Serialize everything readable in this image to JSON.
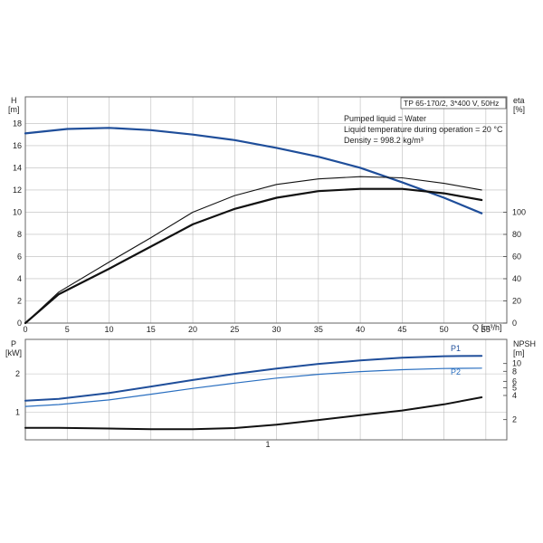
{
  "colors": {
    "head_curve": "#1f4e9a",
    "power_p1": "#1f4e9a",
    "power_p2": "#2a6fc0",
    "eff_curve": "#111111",
    "npsh_curve": "#111111",
    "grid": "#bbbbbb",
    "frame": "#666666"
  },
  "info_box": {
    "title": "TP 65-170/2, 3*400 V, 50Hz",
    "lines": [
      "Pumped liquid = Water",
      "Liquid temperature during operation = 20 °C",
      "Density = 998.2 kg/m³"
    ]
  },
  "chart_data": [
    {
      "type": "line",
      "grid": true,
      "x_label": "Q [m³/h]",
      "x_ticks": [
        0,
        5,
        10,
        15,
        20,
        25,
        30,
        35,
        40,
        45,
        50,
        55
      ],
      "xlim": [
        0,
        57.5
      ],
      "left_axis": {
        "label_top": "H",
        "label_unit": "[m]",
        "ticks": [
          0,
          2,
          4,
          6,
          8,
          10,
          12,
          14,
          16,
          18
        ],
        "ylim": [
          0,
          20.4
        ]
      },
      "right_axis": {
        "label_top": "eta",
        "label_unit": "[%]",
        "ticks": [
          0,
          20,
          40,
          60,
          80,
          100
        ],
        "ylim": [
          0,
          204
        ]
      },
      "series": [
        {
          "id": "H",
          "axis": "left",
          "x": [
            0,
            5,
            10,
            15,
            20,
            25,
            30,
            35,
            40,
            45,
            50,
            54.5
          ],
          "y": [
            17.1,
            17.5,
            17.6,
            17.4,
            17.0,
            16.5,
            15.8,
            15.0,
            14.0,
            12.7,
            11.3,
            9.9
          ]
        },
        {
          "id": "eta",
          "axis": "right",
          "x": [
            0,
            4,
            10,
            15,
            20,
            25,
            30,
            35,
            40,
            45,
            50,
            54.5
          ],
          "y": [
            0,
            28,
            55,
            77,
            100,
            115,
            125,
            130,
            132,
            131,
            126,
            120
          ]
        },
        {
          "id": "eta_bold",
          "axis": "right",
          "x": [
            0,
            4,
            10,
            15,
            20,
            25,
            30,
            35,
            40,
            45,
            50,
            54.5
          ],
          "y": [
            0,
            26,
            49,
            69,
            89,
            103,
            113,
            119,
            121,
            121,
            117,
            111
          ]
        }
      ]
    },
    {
      "type": "line",
      "grid": true,
      "x_tick_labels": [
        "1"
      ],
      "xlim": [
        0,
        57.5
      ],
      "left_axis": {
        "label_top": "P",
        "label_unit": "[kW]",
        "ticks": [
          1,
          2
        ],
        "ylim": [
          0.28,
          2.9
        ]
      },
      "right_axis": {
        "label_top": "NPSH",
        "label_unit": "[m]",
        "ticks": [
          2,
          4,
          5,
          6,
          8,
          10
        ],
        "log": true,
        "ylim": [
          1.12,
          20
        ]
      },
      "series": [
        {
          "id": "P1",
          "name": "P1",
          "axis": "left",
          "x": [
            0,
            4,
            10,
            15,
            20,
            25,
            30,
            35,
            40,
            45,
            50,
            54.5
          ],
          "y": [
            1.3,
            1.35,
            1.5,
            1.67,
            1.84,
            2.0,
            2.14,
            2.26,
            2.35,
            2.42,
            2.46,
            2.47
          ]
        },
        {
          "id": "P2",
          "name": "P2",
          "axis": "left",
          "x": [
            0,
            4,
            10,
            15,
            20,
            25,
            30,
            35,
            40,
            45,
            50,
            54.5
          ],
          "y": [
            1.15,
            1.2,
            1.32,
            1.47,
            1.62,
            1.76,
            1.89,
            1.99,
            2.06,
            2.11,
            2.14,
            2.15
          ]
        },
        {
          "id": "NPSH",
          "axis": "right",
          "x": [
            0,
            4,
            10,
            15,
            20,
            25,
            30,
            35,
            40,
            45,
            50,
            54.5
          ],
          "y": [
            1.58,
            1.58,
            1.55,
            1.52,
            1.52,
            1.57,
            1.73,
            1.98,
            2.27,
            2.6,
            3.1,
            3.8
          ]
        }
      ]
    }
  ]
}
